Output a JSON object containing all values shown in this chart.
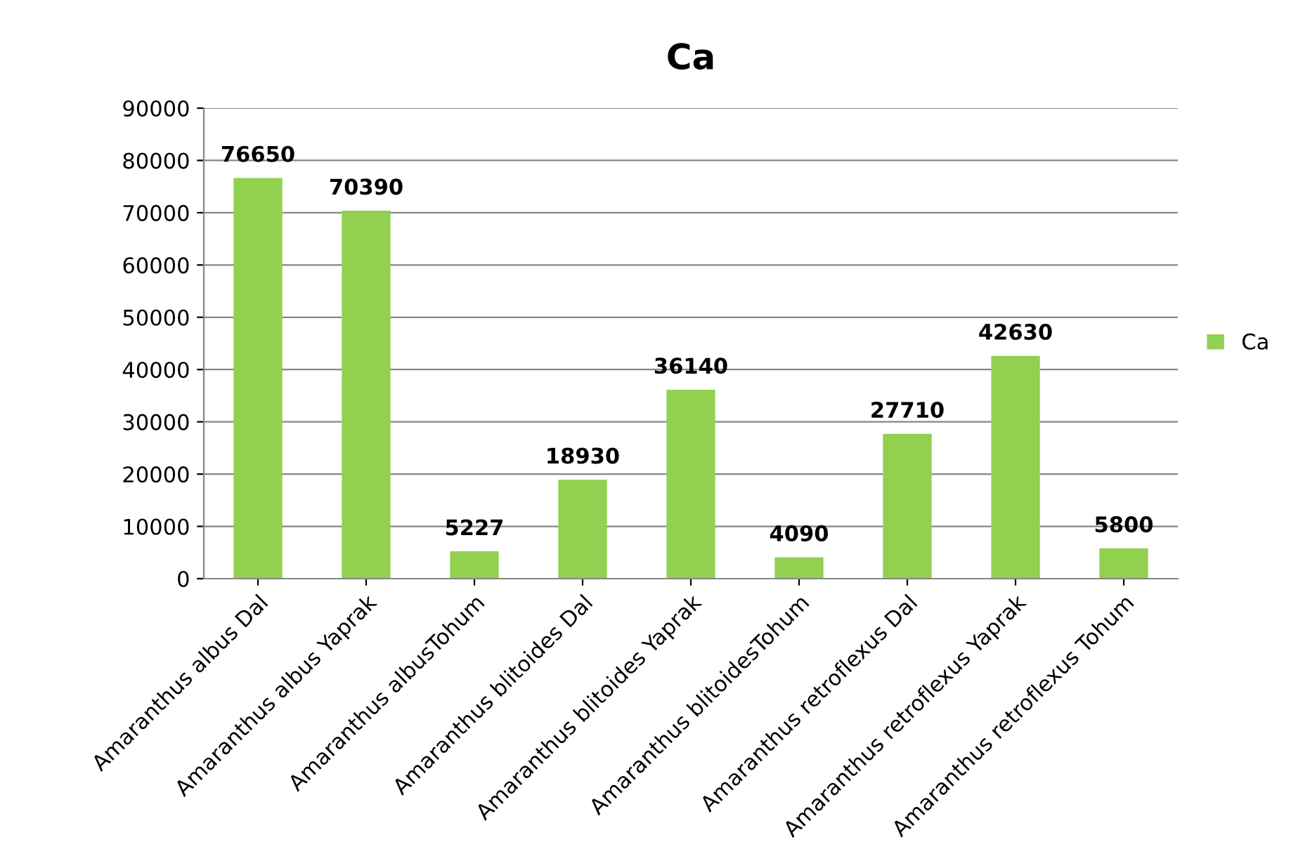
{
  "chart_data": {
    "type": "bar",
    "title": "Ca",
    "categories": [
      "Amaranthus albus Dal",
      "Amaranthus albus Yaprak",
      "Amaranthus albusTohum",
      "Amaranthus blitoides Dal",
      "Amaranthus blitoides Yaprak",
      "Amaranthus blitoidesTohum",
      "Amaranthus retroflexus Dal",
      "Amaranthus retroflexus Yaprak",
      "Amaranthus retroflexus Tohum"
    ],
    "series": [
      {
        "name": "Ca",
        "color": "#92d050",
        "values": [
          76650,
          70390,
          5227,
          18930,
          36140,
          4090,
          27710,
          42630,
          5800
        ]
      }
    ],
    "ylim": [
      0,
      90000
    ],
    "yticks": [
      0,
      10000,
      20000,
      30000,
      40000,
      50000,
      60000,
      70000,
      80000,
      90000
    ],
    "grid": "y",
    "legend": "right",
    "data_labels": true
  }
}
